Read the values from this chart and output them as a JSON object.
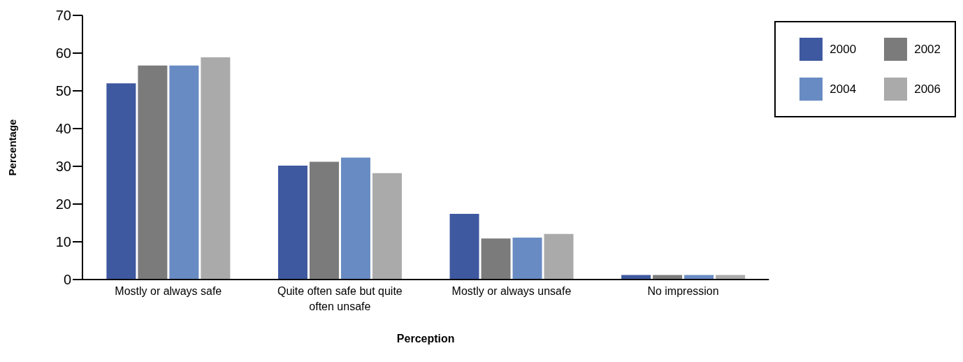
{
  "chart_data": {
    "type": "bar",
    "xlabel": "Perception",
    "ylabel": "Percentage",
    "categories": [
      "Mostly or always safe",
      "Quite often safe but quite often unsafe",
      "Mostly or always unsafe",
      "No impression"
    ],
    "series": [
      {
        "name": "2000",
        "color": "#3e59a0",
        "values": [
          52,
          30.2,
          17.4,
          1.2
        ]
      },
      {
        "name": "2002",
        "color": "#7b7b7b",
        "values": [
          56.7,
          31.2,
          10.9,
          1.2
        ]
      },
      {
        "name": "2004",
        "color": "#688bc3",
        "values": [
          56.7,
          32.3,
          11.1,
          1.2
        ]
      },
      {
        "name": "2006",
        "color": "#aaaaaa",
        "values": [
          58.9,
          28.2,
          12.1,
          1.2
        ]
      }
    ],
    "ylim": [
      0,
      70
    ],
    "yticks": [
      0,
      10,
      20,
      30,
      40,
      50,
      60,
      70
    ],
    "grid": false,
    "legend": "top right"
  }
}
